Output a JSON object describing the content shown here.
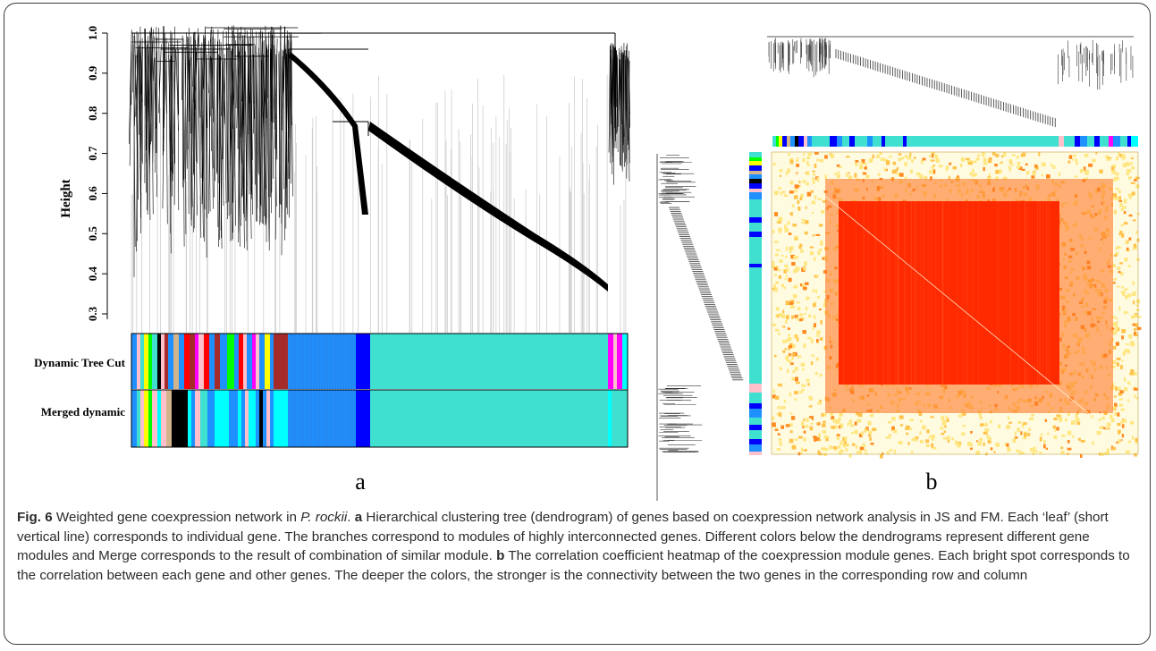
{
  "panel_a": {
    "y_axis_label": "Height",
    "y_ticks": [
      "1.0",
      "0.9",
      "0.8",
      "0.7",
      "0.6",
      "0.5",
      "0.4",
      "0.3"
    ],
    "row_labels": [
      "Dynamic Tree Cut",
      "Merged dynamic"
    ],
    "panel_label": "a",
    "colors": {
      "turquoise": "#40e0d0",
      "blue": "#0000ff",
      "light_blue": "#1e90ff",
      "red": "#ff0000",
      "brown": "#a52a2a",
      "green": "#00ff00",
      "yellow": "#ffff00",
      "black": "#000000",
      "pink": "#ffc0cb",
      "magenta": "#ff00ff",
      "cyan": "#00ffff",
      "tan": "#d2b48c"
    }
  },
  "panel_b": {
    "panel_label": "b",
    "heatmap_colors": {
      "low": "#fffbe0",
      "mid": "#ffd23c",
      "high": "#ff2a00"
    }
  },
  "caption": {
    "fig_label": "Fig. 6",
    "title_pre": "Weighted gene coexpression network in",
    "species": "P. rockii",
    "title_post": ".",
    "a_label": "a",
    "a_text": "Hierarchical clustering tree (dendrogram) of genes based on coexpression network analysis in JS and FM. Each ‘leaf’ (short vertical line) corresponds to individual gene. The branches correspond to modules of highly interconnected genes. Different colors below the dendrograms represent different gene modules and Merge corresponds to the result of combination of similar module.",
    "b_label": "b",
    "b_text": "The correlation coefficient heatmap of the coexpression module genes. Each bright spot corresponds to the correlation between each gene and other genes. The deeper the colors, the stronger is the connectivity between the two genes in the corresponding row and column"
  }
}
